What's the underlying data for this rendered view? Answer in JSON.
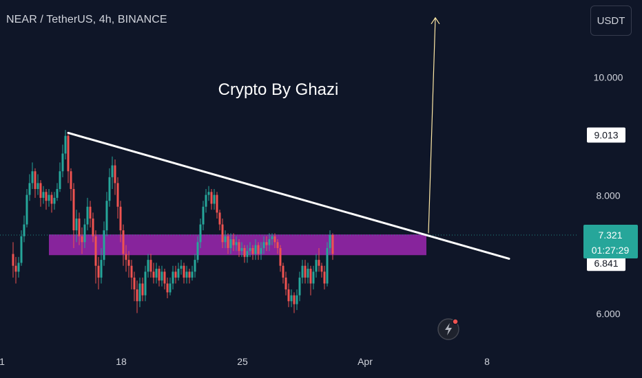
{
  "header": {
    "symbol_title": "NEAR / TetherUS, 4h, BINANCE",
    "currency_button": "USDT"
  },
  "colors": {
    "background": "#0f1628",
    "bull": "#26a69a",
    "bear": "#ef5350",
    "zone": "#9c27b0",
    "trendline": "#ffffff",
    "target_arrow": "#ffe9a6",
    "text": "#d1d4dc"
  },
  "annotations": {
    "watermark": "Crypto  By Ghazi",
    "flash_icon": "lightning-bolt-icon"
  },
  "chart_data": {
    "type": "candlestick",
    "y_range": [
      4.9,
      11.3
    ],
    "y_ticks": [
      "10.000",
      "8.000",
      "6.000"
    ],
    "x_ticks": [
      "1",
      "18",
      "25",
      "Apr",
      "8"
    ],
    "price_labels": {
      "resistance": "9.013",
      "current": "7.321",
      "countdown": "01:27:29",
      "support": "6.841"
    },
    "trendline": {
      "start_bar": 0,
      "start_price": 9.05,
      "end_bar": 160,
      "end_price": 6.92
    },
    "zone": {
      "top": 7.33,
      "bottom": 6.98,
      "start_bar": 0,
      "end_bar": 130
    },
    "target_arrow": {
      "from_bar": 130,
      "from_price": 7.35,
      "to_bar": 132,
      "to_price": 11.0
    },
    "current_price_line": 7.321,
    "bar_origin_x": 99,
    "bar_step": 4,
    "candles_before": [
      [
        7.0,
        6.8,
        7.2,
        6.6
      ],
      [
        6.8,
        6.7,
        6.95,
        6.5
      ],
      [
        6.7,
        6.85,
        6.95,
        6.6
      ],
      [
        6.85,
        7.3,
        7.4,
        6.8
      ],
      [
        7.3,
        7.5,
        7.65,
        7.2
      ],
      [
        7.5,
        8.0,
        8.1,
        7.45
      ],
      [
        8.0,
        8.2,
        8.35,
        7.9
      ],
      [
        8.2,
        8.4,
        8.55,
        8.1
      ],
      [
        8.4,
        8.1,
        8.45,
        7.95
      ],
      [
        8.1,
        8.2,
        8.35,
        8.0
      ],
      [
        8.2,
        7.95,
        8.25,
        7.8
      ],
      [
        7.95,
        8.05,
        8.15,
        7.85
      ],
      [
        8.05,
        7.9,
        8.1,
        7.75
      ],
      [
        7.9,
        8.0,
        8.1,
        7.8
      ],
      [
        8.0,
        7.85,
        8.05,
        7.7
      ],
      [
        7.85,
        7.95,
        8.05,
        7.75
      ],
      [
        7.95,
        8.1,
        8.2,
        7.9
      ],
      [
        8.1,
        8.4,
        8.55,
        8.05
      ],
      [
        8.4,
        8.7,
        8.85,
        8.3
      ],
      [
        8.7,
        9.0,
        9.1,
        8.6
      ]
    ],
    "candles": [
      [
        9.0,
        8.4,
        9.05,
        8.2
      ],
      [
        8.4,
        8.1,
        8.45,
        7.9
      ],
      [
        8.1,
        7.4,
        8.2,
        7.1
      ],
      [
        7.4,
        7.6,
        7.75,
        7.2
      ],
      [
        7.6,
        7.3,
        7.7,
        7.15
      ],
      [
        7.3,
        7.2,
        7.45,
        7.0
      ],
      [
        7.2,
        7.5,
        7.6,
        7.1
      ],
      [
        7.5,
        7.8,
        7.95,
        7.4
      ],
      [
        7.8,
        7.6,
        7.9,
        7.45
      ],
      [
        7.6,
        7.3,
        7.7,
        7.2
      ],
      [
        7.3,
        6.8,
        7.4,
        6.5
      ],
      [
        6.8,
        6.6,
        6.95,
        6.4
      ],
      [
        6.6,
        6.9,
        7.1,
        6.5
      ],
      [
        6.9,
        7.4,
        7.55,
        6.8
      ],
      [
        7.4,
        7.9,
        8.05,
        7.3
      ],
      [
        7.9,
        8.3,
        8.45,
        7.8
      ],
      [
        8.3,
        8.5,
        8.65,
        8.1
      ],
      [
        8.5,
        8.2,
        8.6,
        8.0
      ],
      [
        8.2,
        7.8,
        8.3,
        7.6
      ],
      [
        7.8,
        7.4,
        7.9,
        7.2
      ],
      [
        7.4,
        7.0,
        7.5,
        6.8
      ],
      [
        7.0,
        6.9,
        7.15,
        6.7
      ],
      [
        6.9,
        6.8,
        7.05,
        6.6
      ],
      [
        6.8,
        6.6,
        6.9,
        6.4
      ],
      [
        6.6,
        6.4,
        6.7,
        6.2
      ],
      [
        6.4,
        6.2,
        6.55,
        6.0
      ],
      [
        6.2,
        6.5,
        6.6,
        6.1
      ],
      [
        6.5,
        6.3,
        6.6,
        6.2
      ],
      [
        6.3,
        6.7,
        6.8,
        6.2
      ],
      [
        6.7,
        6.9,
        7.0,
        6.6
      ],
      [
        6.9,
        6.7,
        7.0,
        6.6
      ],
      [
        6.7,
        6.6,
        6.85,
        6.5
      ],
      [
        6.6,
        6.75,
        6.85,
        6.5
      ],
      [
        6.75,
        6.55,
        6.8,
        6.45
      ],
      [
        6.55,
        6.7,
        6.8,
        6.45
      ],
      [
        6.7,
        6.5,
        6.75,
        6.4
      ],
      [
        6.5,
        6.35,
        6.6,
        6.25
      ],
      [
        6.35,
        6.5,
        6.6,
        6.3
      ],
      [
        6.5,
        6.7,
        6.8,
        6.4
      ],
      [
        6.7,
        6.6,
        6.8,
        6.5
      ],
      [
        6.6,
        6.75,
        6.85,
        6.55
      ],
      [
        6.75,
        6.8,
        6.9,
        6.65
      ],
      [
        6.8,
        6.6,
        6.85,
        6.5
      ],
      [
        6.6,
        6.7,
        6.8,
        6.5
      ],
      [
        6.7,
        6.6,
        6.75,
        6.5
      ],
      [
        6.6,
        6.7,
        6.8,
        6.55
      ],
      [
        6.7,
        6.9,
        7.0,
        6.6
      ],
      [
        6.9,
        7.2,
        7.3,
        6.85
      ],
      [
        7.2,
        7.5,
        7.6,
        7.1
      ],
      [
        7.5,
        7.8,
        7.9,
        7.4
      ],
      [
        7.8,
        8.0,
        8.1,
        7.7
      ],
      [
        8.0,
        8.05,
        8.15,
        7.9
      ],
      [
        8.05,
        7.85,
        8.1,
        7.75
      ],
      [
        7.85,
        8.0,
        8.1,
        7.75
      ],
      [
        8.0,
        7.7,
        8.05,
        7.6
      ],
      [
        7.7,
        7.5,
        7.75,
        7.4
      ],
      [
        7.5,
        7.2,
        7.6,
        7.1
      ],
      [
        7.2,
        7.3,
        7.4,
        7.1
      ],
      [
        7.3,
        7.1,
        7.35,
        7.0
      ],
      [
        7.1,
        7.25,
        7.35,
        7.0
      ],
      [
        7.25,
        7.15,
        7.35,
        7.05
      ],
      [
        7.15,
        7.2,
        7.3,
        7.05
      ],
      [
        7.2,
        7.05,
        7.25,
        6.95
      ],
      [
        7.05,
        7.1,
        7.2,
        6.95
      ],
      [
        7.1,
        6.95,
        7.15,
        6.85
      ],
      [
        6.95,
        7.05,
        7.15,
        6.85
      ],
      [
        7.05,
        7.1,
        7.2,
        6.95
      ],
      [
        7.1,
        7.0,
        7.15,
        6.9
      ],
      [
        7.0,
        7.15,
        7.25,
        6.9
      ],
      [
        7.15,
        7.0,
        7.2,
        6.9
      ],
      [
        7.0,
        7.1,
        7.2,
        6.9
      ],
      [
        7.1,
        7.2,
        7.3,
        7.0
      ],
      [
        7.2,
        7.15,
        7.3,
        7.05
      ],
      [
        7.15,
        7.25,
        7.35,
        7.05
      ],
      [
        7.25,
        7.3,
        7.35,
        7.15
      ],
      [
        7.3,
        7.2,
        7.35,
        7.1
      ],
      [
        7.2,
        7.1,
        7.25,
        7.0
      ],
      [
        7.1,
        6.8,
        7.15,
        6.7
      ],
      [
        6.8,
        6.6,
        6.85,
        6.5
      ],
      [
        6.6,
        6.4,
        6.7,
        6.3
      ],
      [
        6.4,
        6.2,
        6.5,
        6.1
      ],
      [
        6.2,
        6.3,
        6.4,
        6.1
      ],
      [
        6.3,
        6.15,
        6.35,
        6.0
      ],
      [
        6.15,
        6.3,
        6.4,
        6.05
      ],
      [
        6.3,
        6.6,
        6.7,
        6.2
      ],
      [
        6.6,
        6.8,
        6.9,
        6.5
      ],
      [
        6.8,
        6.6,
        6.9,
        6.5
      ],
      [
        6.6,
        6.75,
        6.85,
        6.5
      ],
      [
        6.75,
        6.5,
        6.8,
        6.3
      ],
      [
        6.5,
        6.7,
        6.8,
        6.4
      ],
      [
        6.7,
        6.9,
        7.0,
        6.6
      ],
      [
        6.9,
        6.8,
        7.1,
        6.7
      ],
      [
        6.8,
        6.7,
        6.85,
        6.6
      ],
      [
        6.7,
        6.5,
        6.8,
        6.4
      ],
      [
        6.5,
        7.1,
        7.2,
        6.45
      ],
      [
        7.1,
        7.32,
        7.4,
        7.0
      ]
    ],
    "candles_after": [
      [
        7.32,
        7.0,
        7.35,
        6.9
      ]
    ]
  }
}
